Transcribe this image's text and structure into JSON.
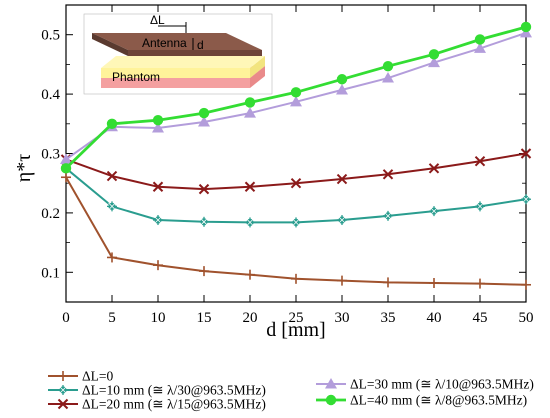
{
  "chart_data": {
    "type": "line",
    "xlabel": "d [mm]",
    "ylabel": "η*τ",
    "x": [
      0,
      5,
      10,
      15,
      20,
      25,
      30,
      35,
      40,
      45,
      50
    ],
    "xlim": [
      0,
      50
    ],
    "ylim": [
      0.05,
      0.55
    ],
    "xticks": [
      0,
      5,
      10,
      15,
      20,
      25,
      30,
      35,
      40,
      45,
      50
    ],
    "yticks": [
      0.1,
      0.2,
      0.3,
      0.4,
      0.5
    ],
    "grid": false,
    "legend_position": "bottom",
    "series": [
      {
        "name": "ΔL=0",
        "marker": "plus",
        "color": "#a0522d",
        "values": [
          0.26,
          0.125,
          0.112,
          0.102,
          0.096,
          0.089,
          0.086,
          0.083,
          0.082,
          0.081,
          0.079
        ]
      },
      {
        "name": "ΔL=10 mm (≅ λ/30@963.5MHz)",
        "marker": "asterisk",
        "color": "#2a9d8f",
        "values": [
          0.275,
          0.211,
          0.188,
          0.185,
          0.184,
          0.184,
          0.188,
          0.195,
          0.203,
          0.211,
          0.223
        ]
      },
      {
        "name": "ΔL=20 mm (≅ λ/15@963.5MHz)",
        "marker": "cross",
        "color": "#8b1a1a",
        "values": [
          0.29,
          0.262,
          0.244,
          0.24,
          0.244,
          0.25,
          0.257,
          0.265,
          0.275,
          0.287,
          0.3
        ]
      },
      {
        "name": "ΔL=30 mm (≅ λ/10@963.5MHz)",
        "marker": "triangle",
        "color": "#b39ddb",
        "values": [
          0.29,
          0.345,
          0.343,
          0.353,
          0.368,
          0.387,
          0.407,
          0.427,
          0.453,
          0.477,
          0.503
        ]
      },
      {
        "name": "ΔL=40 mm (≅ λ/8@963.5MHz)",
        "marker": "circle",
        "color": "#33dd33",
        "values": [
          0.275,
          0.35,
          0.356,
          0.368,
          0.386,
          0.403,
          0.425,
          0.447,
          0.467,
          0.492,
          0.513
        ]
      }
    ],
    "inset": {
      "labels": {
        "delta": "ΔL",
        "antenna": "Antenna",
        "d": "d",
        "phantom": "Phantom"
      },
      "colors": {
        "antenna_top": "#8b5a4a",
        "antenna_side": "#6d4438",
        "phantom_yellow": "#fff39a",
        "phantom_pink": "#f4a0a0"
      }
    }
  }
}
